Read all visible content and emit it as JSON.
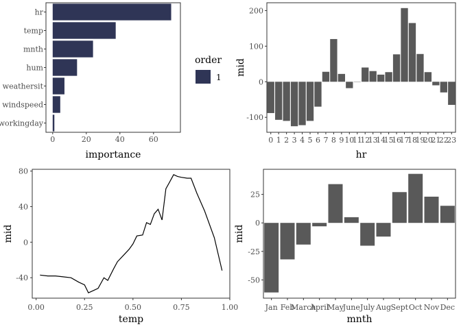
{
  "colors": {
    "importance_bar": "#2f3556",
    "bar": "#595959",
    "line": "#000000",
    "panel_border": "#333333",
    "tick_text": "#4d4d4d",
    "axis_title": "#000000"
  },
  "chart_data": [
    {
      "type": "bar",
      "orientation": "horizontal",
      "categories": [
        "hr",
        "temp",
        "mnth",
        "hum",
        "weathersit",
        "windspeed",
        "workingday"
      ],
      "series": [
        {
          "name": "1",
          "values": [
            70.5,
            37.5,
            24,
            14.5,
            7,
            4.5,
            1
          ]
        }
      ],
      "xlabel": "importance",
      "ylabel": "",
      "xlim": [
        -4,
        76
      ],
      "xticks": [
        0,
        20,
        40,
        60
      ],
      "grid": false,
      "legend": {
        "title": "order",
        "entries": [
          "1"
        ],
        "placement": "right"
      }
    },
    {
      "type": "bar",
      "categories": [
        "0",
        "1",
        "2",
        "3",
        "4",
        "5",
        "6",
        "7",
        "8",
        "9",
        "10",
        "11",
        "12",
        "13",
        "14",
        "15",
        "16",
        "17",
        "18",
        "19",
        "20",
        "21",
        "22",
        "23"
      ],
      "values": [
        -88,
        -107,
        -110,
        -125,
        -122,
        -110,
        -70,
        28,
        120,
        22,
        -18,
        0,
        40,
        30,
        20,
        27,
        77,
        207,
        165,
        78,
        27,
        -10,
        -30,
        -65
      ],
      "xlabel": "hr",
      "ylabel": "mid",
      "ylim": [
        -142,
        222
      ],
      "yticks": [
        -100,
        0,
        100,
        200
      ],
      "grid": false
    },
    {
      "type": "line",
      "x": [
        0.02,
        0.06,
        0.1,
        0.14,
        0.18,
        0.22,
        0.25,
        0.27,
        0.3,
        0.32,
        0.35,
        0.37,
        0.4,
        0.42,
        0.45,
        0.48,
        0.5,
        0.52,
        0.55,
        0.57,
        0.59,
        0.61,
        0.63,
        0.65,
        0.67,
        0.69,
        0.71,
        0.73,
        0.75,
        0.78,
        0.8,
        0.83,
        0.87,
        0.92,
        0.96
      ],
      "y": [
        -37,
        -38,
        -38,
        -39,
        -40,
        -45,
        -48,
        -57,
        -54,
        -52,
        -40,
        -43,
        -30,
        -22,
        -15,
        -8,
        -2,
        7,
        8,
        22,
        20,
        32,
        37,
        25,
        60,
        68,
        76,
        74,
        73,
        72,
        72,
        55,
        35,
        5,
        -32
      ],
      "xlabel": "temp",
      "ylabel": "mid",
      "xlim": [
        -0.02,
        1.0
      ],
      "ylim": [
        -63,
        82
      ],
      "xticks": [
        0.0,
        0.25,
        0.5,
        0.75,
        1.0
      ],
      "xtick_labels": [
        "0.00",
        "0.25",
        "0.50",
        "0.75",
        "1.00"
      ],
      "yticks": [
        -40,
        0,
        40,
        80
      ],
      "grid": false
    },
    {
      "type": "bar",
      "categories": [
        "Jan",
        "Feb",
        "March",
        "April",
        "May",
        "June",
        "July",
        "Aug",
        "Sept",
        "Oct",
        "Nov",
        "Dec"
      ],
      "values": [
        -61,
        -32,
        -19,
        -3,
        34,
        5,
        -20,
        -12,
        27,
        43,
        23,
        15
      ],
      "xlabel": "mnth",
      "ylabel": "mid",
      "ylim": [
        -66,
        47
      ],
      "yticks": [
        25,
        0,
        -25,
        -50
      ],
      "ytick_labels": [
        "25",
        "0",
        "-25",
        "-50"
      ],
      "grid": false
    }
  ]
}
